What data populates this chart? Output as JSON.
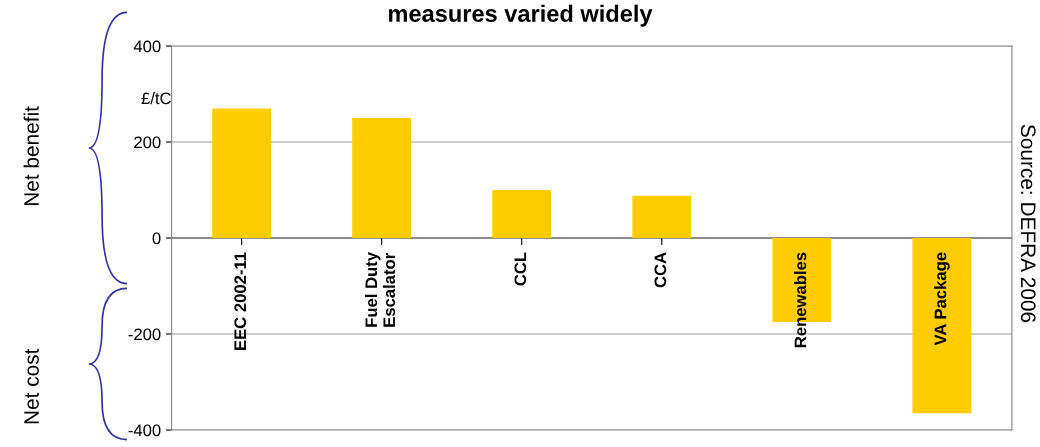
{
  "chart_data": {
    "type": "bar",
    "title": "measures varied widely",
    "categories": [
      "EEC 2002-11",
      "Fuel Duty\nEscalator",
      "CCL",
      "CCA",
      "Renewables",
      "VA Package"
    ],
    "values": [
      270,
      250,
      100,
      88,
      -175,
      -365
    ],
    "color": "#ffcc00",
    "ylim": [
      -400,
      400
    ],
    "yticks": [
      -400,
      -200,
      0,
      200,
      400
    ],
    "grid": "y",
    "annotations": [
      "£/tC",
      "Net benefit",
      "Net cost",
      "Source: DEFRA 2006"
    ]
  }
}
